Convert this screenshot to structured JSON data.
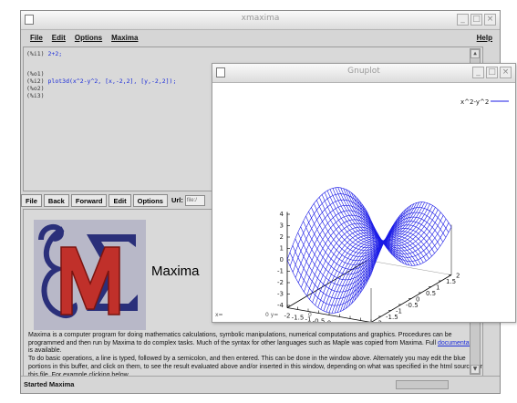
{
  "xmaxima": {
    "title": "xmaxima",
    "menu": [
      "File",
      "Edit",
      "Options",
      "Maxima"
    ],
    "help_label": "Help",
    "console_lines": [
      {
        "label": "(%i1)",
        "input": "2+2;"
      },
      {
        "label": "(%o1)",
        "input": ""
      },
      {
        "label": "(%i2)",
        "input": "plot3d(x^2-y^2, [x,-2,2], [y,-2,2]);"
      },
      {
        "label": "(%o2)",
        "input": ""
      },
      {
        "label": "(%i3)",
        "input": ""
      }
    ],
    "browser_buttons": [
      "File",
      "Back",
      "Forward",
      "Edit",
      "Options"
    ],
    "url_label": "Url:",
    "url_value": "file:/",
    "logo_title": "Maxima",
    "help_paragraph_1": "Maxima is a computer program for doing mathematics calculations, symbolic manipulations, numerical computations and graphics. Procedures can be programmed and then run by Maxima to do complex tasks. Much of the syntax for other languages such as Maple was copied from Maxima. Full",
    "help_link": "documentation",
    "help_paragraph_1_end": "is available.",
    "help_paragraph_2": "To do basic operations, a line is typed, followed by a semicolon, and then entered. This can be done in the window above. Alternately you may edit the blue portions in this buffer, and click on them, to see the result evaluated above and/or inserted in this window, depending on what was specified in the html source for this file. For example clicking below",
    "status": "Started Maxima"
  },
  "gnuplot": {
    "title": "Gnuplot",
    "legend": "x^2-y^2",
    "z_ticks": [
      "4",
      "3",
      "2",
      "1",
      "0",
      "-1",
      "-2",
      "-3",
      "-4"
    ],
    "x_ticks": [
      "-2",
      "-1.5",
      "-1",
      "-0.5",
      "0",
      "0.5",
      "1",
      "1.5",
      "2"
    ],
    "y_ticks": [
      "-2",
      "-1.5",
      "-1",
      "-0.5",
      "0",
      "0.5",
      "1",
      "1.5",
      "2"
    ],
    "status_left": "x=",
    "status_mid": "0  y=",
    "status_right": "0",
    "curve_color": "#1a1ae6"
  }
}
